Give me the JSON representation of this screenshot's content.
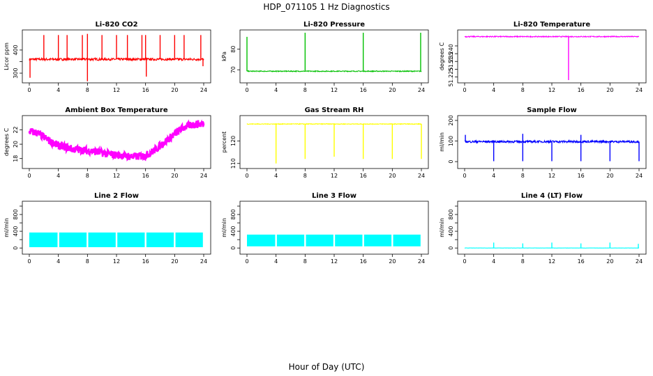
{
  "figure": {
    "title": "HDP_071105  1 Hz Diagnostics",
    "xlabel": "Hour of Day (UTC)"
  },
  "chart_data": [
    {
      "type": "line",
      "title": "Li-820 CO2",
      "ylabel": "Licor ppm",
      "color": "#ff0000",
      "xlim": [
        0,
        24
      ],
      "ylim": [
        270,
        475
      ],
      "xticks": [
        0,
        4,
        8,
        12,
        16,
        20,
        24
      ],
      "yticks": [
        300,
        350,
        400
      ],
      "yticklabels": [
        "300",
        "",
        "400"
      ],
      "baseline": 360,
      "noise": 5,
      "spikes": [
        [
          2,
          465
        ],
        [
          4,
          465
        ],
        [
          5.2,
          465
        ],
        [
          7.3,
          465
        ],
        [
          8,
          470
        ],
        [
          10,
          465
        ],
        [
          12,
          465
        ],
        [
          13.5,
          465
        ],
        [
          15.5,
          465
        ],
        [
          16,
          465
        ],
        [
          18,
          465
        ],
        [
          20,
          465
        ],
        [
          21.3,
          465
        ],
        [
          23.6,
          465
        ]
      ],
      "dips": [
        [
          0.1,
          280
        ],
        [
          8,
          265
        ],
        [
          16.1,
          285
        ],
        [
          23.9,
          330
        ]
      ]
    },
    {
      "type": "line",
      "title": "Li-820 Pressure",
      "ylabel": "kPa",
      "color": "#00c000",
      "xlim": [
        0,
        24
      ],
      "ylim": [
        65,
        88
      ],
      "xticks": [
        0,
        4,
        8,
        12,
        16,
        20,
        24
      ],
      "yticks": [
        70,
        80
      ],
      "yticklabels": [
        "70",
        "80"
      ],
      "baseline": 69.3,
      "noise": 0.2,
      "spikes": [
        [
          0,
          86
        ],
        [
          8,
          88
        ],
        [
          16,
          88
        ],
        [
          23.9,
          88
        ]
      ],
      "dips": []
    },
    {
      "type": "line",
      "title": "Li-820 Temperature",
      "ylabel": "degrees C",
      "color": "#ff00ff",
      "xlim": [
        0,
        24
      ],
      "ylim": [
        51.223,
        51.2535
      ],
      "xticks": [
        0,
        4,
        8,
        12,
        16,
        20,
        24
      ],
      "yticks": [
        51.225,
        51.23,
        51.235,
        51.24,
        51.245
      ],
      "yticklabels": [
        "51.225",
        "",
        "51.235",
        "51.240",
        ""
      ],
      "baseline": 51.251,
      "noise": 0.0003,
      "spikes": [],
      "dips": [
        [
          14.3,
          51.223
        ]
      ]
    },
    {
      "type": "line",
      "title": "Ambient Box Temperature",
      "ylabel": "degrees C",
      "color": "#ff00ff",
      "xlim": [
        0,
        24
      ],
      "ylim": [
        17,
        23.6
      ],
      "xticks": [
        0,
        4,
        8,
        12,
        16,
        20,
        24
      ],
      "yticks": [
        18,
        20,
        22
      ],
      "yticklabels": [
        "18",
        "20",
        "22"
      ],
      "curve": [
        [
          0,
          21.8
        ],
        [
          1,
          21.6
        ],
        [
          2,
          21
        ],
        [
          3,
          20.3
        ],
        [
          4,
          19.8
        ],
        [
          5,
          19.6
        ],
        [
          6,
          19.3
        ],
        [
          7,
          19.2
        ],
        [
          8,
          19.1
        ],
        [
          9,
          19
        ],
        [
          10,
          18.8
        ],
        [
          11,
          18.6
        ],
        [
          12,
          18.5
        ],
        [
          13,
          18.4
        ],
        [
          14,
          18.3
        ],
        [
          15,
          18.3
        ],
        [
          16,
          18.4
        ],
        [
          17,
          19
        ],
        [
          18,
          19.8
        ],
        [
          19,
          20.6
        ],
        [
          20,
          21.4
        ],
        [
          21,
          22.2
        ],
        [
          22,
          22.6
        ],
        [
          23,
          22.8
        ],
        [
          24,
          22.8
        ]
      ],
      "noise": 0.55,
      "spikes": [],
      "dips": []
    },
    {
      "type": "line",
      "title": "Gas Stream RH",
      "ylabel": "percent",
      "color": "#ffff00",
      "xlim": [
        0,
        24
      ],
      "ylim": [
        109,
        130
      ],
      "xticks": [
        0,
        4,
        8,
        12,
        16,
        20,
        24
      ],
      "yticks": [
        110,
        120
      ],
      "yticklabels": [
        "110",
        "120"
      ],
      "baseline": 127.5,
      "noise": 0.15,
      "spikes": [],
      "dips": [
        [
          4,
          110
        ],
        [
          8,
          112
        ],
        [
          12,
          113
        ],
        [
          16,
          112
        ],
        [
          20,
          112
        ],
        [
          24,
          112
        ]
      ]
    },
    {
      "type": "line",
      "title": "Sample Flow",
      "ylabel": "ml/min",
      "color": "#0000ff",
      "xlim": [
        0,
        24
      ],
      "ylim": [
        -20,
        210
      ],
      "xticks": [
        0,
        4,
        8,
        12,
        16,
        20,
        24
      ],
      "yticks": [
        0,
        100,
        200
      ],
      "yticklabels": [
        "0",
        "100",
        "200"
      ],
      "baseline": 97,
      "noise": 5,
      "spikes": [
        [
          0.1,
          130
        ],
        [
          8,
          135
        ],
        [
          16,
          130
        ]
      ],
      "dips": [
        [
          4,
          2
        ],
        [
          8,
          2
        ],
        [
          12,
          2
        ],
        [
          16,
          2
        ],
        [
          20,
          2
        ],
        [
          24,
          2
        ]
      ]
    },
    {
      "type": "area",
      "title": "Line 2 Flow",
      "ylabel": "ml/min",
      "color": "#00ffff",
      "xlim": [
        0,
        24
      ],
      "ylim": [
        -80,
        1050
      ],
      "xticks": [
        0,
        4,
        8,
        12,
        16,
        20,
        24
      ],
      "yticks": [
        0,
        200,
        400,
        600,
        800,
        1000
      ],
      "yticklabels": [
        "0",
        "",
        "400",
        "",
        "800",
        ""
      ],
      "band": [
        20,
        370
      ],
      "gaps": [
        4,
        8,
        12,
        16,
        20
      ],
      "spikes": [],
      "dips": []
    },
    {
      "type": "area",
      "title": "Line 3 Flow",
      "ylabel": "ml/min",
      "color": "#00ffff",
      "xlim": [
        0,
        24
      ],
      "ylim": [
        -80,
        1050
      ],
      "xticks": [
        0,
        4,
        8,
        12,
        16,
        20,
        24
      ],
      "yticks": [
        0,
        200,
        400,
        600,
        800,
        1000
      ],
      "yticklabels": [
        "0",
        "",
        "400",
        "",
        "800",
        ""
      ],
      "band": [
        40,
        320
      ],
      "gaps": [
        4,
        8,
        12,
        16,
        20
      ],
      "spikes": [],
      "dips": []
    },
    {
      "type": "line",
      "title": "Line 4 (LT) Flow",
      "ylabel": "ml/min",
      "color": "#00ffff",
      "xlim": [
        0,
        24
      ],
      "ylim": [
        -80,
        1050
      ],
      "xticks": [
        0,
        4,
        8,
        12,
        16,
        20,
        24
      ],
      "yticks": [
        0,
        200,
        400,
        600,
        800,
        1000
      ],
      "yticklabels": [
        "0",
        "",
        "400",
        "",
        "800",
        ""
      ],
      "baseline": 0,
      "noise": 2,
      "spikes": [
        [
          4,
          130
        ],
        [
          8,
          110
        ],
        [
          12,
          130
        ],
        [
          16,
          110
        ],
        [
          20,
          130
        ],
        [
          23.9,
          100
        ]
      ],
      "dips": []
    }
  ]
}
